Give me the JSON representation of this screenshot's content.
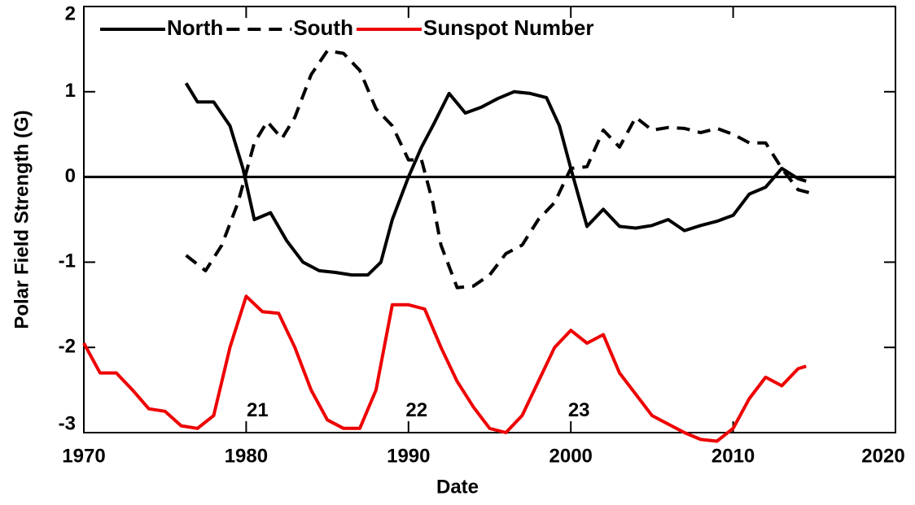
{
  "chart_data": {
    "type": "line",
    "xlabel": "Date",
    "ylabel": "Polar Field Strength (G)",
    "xlim": [
      1970,
      2020
    ],
    "xticks": [
      1970,
      1980,
      1990,
      2000,
      2010,
      2020
    ],
    "ylim": [
      -3,
      2
    ],
    "yticks": [
      -3,
      -2,
      -1,
      0,
      1,
      2
    ],
    "hline": 0,
    "legend": "top-left",
    "series": [
      {
        "name": "North",
        "color": "#000000",
        "dash": "solid",
        "x": [
          1976.3,
          1977,
          1978,
          1979,
          1979.8,
          1980.5,
          1981.5,
          1982.5,
          1983.5,
          1984.5,
          1985.5,
          1986.5,
          1987.5,
          1988.3,
          1989,
          1990,
          1990.8,
          1991.5,
          1992.5,
          1993.5,
          1994.5,
          1995.5,
          1996.5,
          1997.5,
          1998.5,
          1999.3,
          2000,
          2001,
          2002,
          2003,
          2004,
          2005,
          2006,
          2007,
          2008,
          2009,
          2010,
          2011,
          2012,
          2013,
          2014,
          2014.5
        ],
        "values": [
          1.1,
          0.88,
          0.88,
          0.6,
          0.1,
          -0.5,
          -0.42,
          -0.75,
          -1.0,
          -1.1,
          -1.12,
          -1.15,
          -1.15,
          -1.0,
          -0.5,
          0,
          0.35,
          0.6,
          0.98,
          0.75,
          0.82,
          0.92,
          1.0,
          0.98,
          0.93,
          0.6,
          0.1,
          -0.58,
          -0.38,
          -0.58,
          -0.6,
          -0.57,
          -0.5,
          -0.63,
          -0.57,
          -0.52,
          -0.45,
          -0.2,
          -0.12,
          0.1,
          -0.02,
          -0.05
        ]
      },
      {
        "name": "South",
        "color": "#000000",
        "dash": "dashed",
        "x": [
          1976.3,
          1977.5,
          1978.5,
          1979.5,
          1980.5,
          1981.3,
          1982.2,
          1983,
          1984,
          1985,
          1986,
          1987,
          1988,
          1989,
          1990,
          1990.8,
          1991.5,
          1992,
          1993,
          1994,
          1995,
          1996,
          1997,
          1998,
          1999,
          2000,
          2001,
          2002,
          2003,
          2004,
          2005,
          2006,
          2007,
          2008,
          2009,
          2010,
          2011,
          2012,
          2013,
          2014,
          2015
        ],
        "values": [
          -0.92,
          -1.1,
          -0.8,
          -0.3,
          0.4,
          0.65,
          0.45,
          0.7,
          1.2,
          1.48,
          1.45,
          1.25,
          0.8,
          0.6,
          0.2,
          0.2,
          -0.3,
          -0.8,
          -1.3,
          -1.28,
          -1.15,
          -0.9,
          -0.8,
          -0.5,
          -0.3,
          0.1,
          0.12,
          0.55,
          0.35,
          0.7,
          0.55,
          0.58,
          0.57,
          0.52,
          0.57,
          0.5,
          0.4,
          0.4,
          0.1,
          -0.15,
          -0.2
        ]
      },
      {
        "name": "Sunspot Number",
        "color": "#ee0000",
        "dash": "solid",
        "x": [
          1970,
          1971,
          1972,
          1973,
          1974,
          1975,
          1976,
          1977,
          1978,
          1979,
          1980,
          1981,
          1982,
          1983,
          1984,
          1985,
          1986,
          1987,
          1988,
          1989,
          1990,
          1991,
          1992,
          1993,
          1994,
          1995,
          1996,
          1997,
          1998,
          1999,
          2000,
          2001,
          2002,
          2003,
          2004,
          2005,
          2006,
          2007,
          2008,
          2009,
          2010,
          2011,
          2012,
          2013,
          2014,
          2014.5
        ],
        "values": [
          -1.95,
          -2.3,
          -2.3,
          -2.5,
          -2.72,
          -2.75,
          -2.92,
          -2.95,
          -2.8,
          -2.0,
          -1.4,
          -1.58,
          -1.6,
          -2.0,
          -2.5,
          -2.85,
          -2.95,
          -2.95,
          -2.5,
          -1.5,
          -1.5,
          -1.55,
          -2.0,
          -2.4,
          -2.7,
          -2.95,
          -3.0,
          -2.8,
          -2.4,
          -2.0,
          -1.8,
          -1.95,
          -1.85,
          -2.3,
          -2.55,
          -2.8,
          -2.9,
          -3.0,
          -3.08,
          -3.1,
          -2.95,
          -2.6,
          -2.35,
          -2.45,
          -2.25,
          -2.22
        ]
      }
    ],
    "annotations": [
      {
        "text": "21",
        "x": 1980.7,
        "y": -2.75
      },
      {
        "text": "22",
        "x": 1990.5,
        "y": -2.75
      },
      {
        "text": "23",
        "x": 2000.5,
        "y": -2.75
      }
    ]
  }
}
